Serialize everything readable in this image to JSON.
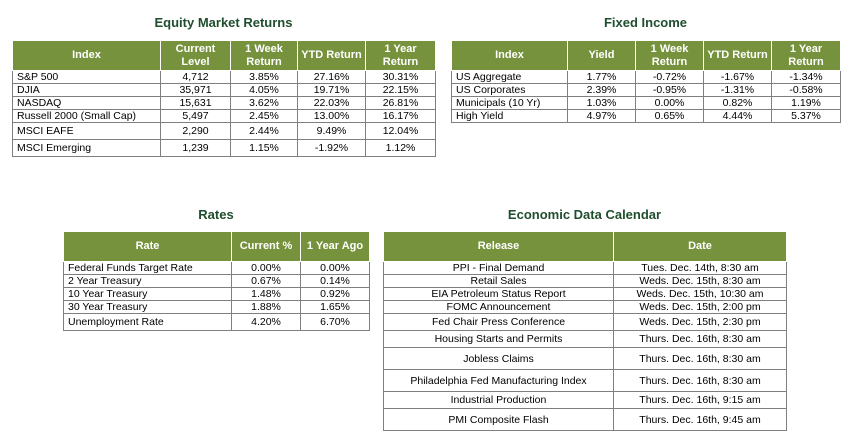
{
  "equity": {
    "title": "Equity Market Returns",
    "headers": [
      "Index",
      "Current Level",
      "1 Week Return",
      "YTD Return",
      "1 Year Return"
    ],
    "rows": [
      [
        "S&P 500",
        "4,712",
        "3.85%",
        "27.16%",
        "30.31%"
      ],
      [
        "DJIA",
        "35,971",
        "4.05%",
        "19.71%",
        "22.15%"
      ],
      [
        "NASDAQ",
        "15,631",
        "3.62%",
        "22.03%",
        "26.81%"
      ],
      [
        "Russell 2000 (Small Cap)",
        "5,497",
        "2.45%",
        "13.00%",
        "16.17%"
      ],
      [
        "MSCI EAFE",
        "2,290",
        "2.44%",
        "9.49%",
        "12.04%"
      ],
      [
        "MSCI Emerging",
        "1,239",
        "1.15%",
        "-1.92%",
        "1.12%"
      ]
    ]
  },
  "fixed_income": {
    "title": "Fixed Income",
    "headers": [
      "Index",
      "Yield",
      "1 Week Return",
      "YTD Return",
      "1 Year Return"
    ],
    "rows": [
      [
        "US Aggregate",
        "1.77%",
        "-0.72%",
        "-1.67%",
        "-1.34%"
      ],
      [
        "US Corporates",
        "2.39%",
        "-0.95%",
        "-1.31%",
        "-0.58%"
      ],
      [
        "Municipals (10 Yr)",
        "1.03%",
        "0.00%",
        "0.82%",
        "1.19%"
      ],
      [
        "High Yield",
        "4.97%",
        "0.65%",
        "4.44%",
        "5.37%"
      ]
    ]
  },
  "rates": {
    "title": "Rates",
    "headers": [
      "Rate",
      "Current %",
      "1 Year Ago"
    ],
    "rows": [
      [
        "Federal Funds Target Rate",
        "0.00%",
        "0.00%"
      ],
      [
        "2 Year Treasury",
        "0.67%",
        "0.14%"
      ],
      [
        "10 Year Treasury",
        "1.48%",
        "0.92%"
      ],
      [
        "30 Year Treasury",
        "1.88%",
        "1.65%"
      ],
      [
        "Unemployment Rate",
        "4.20%",
        "6.70%"
      ]
    ]
  },
  "calendar": {
    "title": "Economic Data Calendar",
    "headers": [
      "Release",
      "Date"
    ],
    "rows": [
      [
        "PPI - Final  Demand",
        "Tues. Dec. 14th, 8:30 am"
      ],
      [
        "Retail Sales",
        "Weds. Dec. 15th, 8:30 am"
      ],
      [
        "EIA Petroleum Status Report",
        "Weds. Dec. 15th, 10:30 am"
      ],
      [
        "FOMC Announcement",
        "Weds. Dec. 15th, 2:00 pm"
      ],
      [
        "Fed Chair Press Conference",
        "Weds. Dec. 15th, 2:30 pm"
      ],
      [
        "Housing Starts and Permits",
        "Thurs. Dec. 16th, 8:30 am"
      ],
      [
        "Jobless Claims",
        "Thurs. Dec. 16th, 8:30 am"
      ],
      [
        "Philadelphia Fed Manufacturing Index",
        "Thurs. Dec. 16th, 8:30 am"
      ],
      [
        "Industrial Production",
        "Thurs. Dec. 16th, 9:15 am"
      ],
      [
        "PMI Composite Flash",
        "Thurs. Dec. 16th, 9:45 am"
      ]
    ]
  },
  "colors": {
    "header_bg": "#76923c",
    "title_text": "#1f4e2e",
    "border": "#7f7f7f"
  }
}
